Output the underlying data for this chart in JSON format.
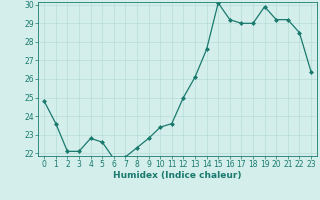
{
  "x": [
    0,
    1,
    2,
    3,
    4,
    5,
    6,
    7,
    8,
    9,
    10,
    11,
    12,
    13,
    14,
    15,
    16,
    17,
    18,
    19,
    20,
    21,
    22,
    23
  ],
  "y": [
    24.8,
    23.6,
    22.1,
    22.1,
    22.8,
    22.6,
    21.7,
    21.8,
    22.3,
    22.8,
    23.4,
    23.6,
    25.0,
    26.1,
    27.6,
    30.1,
    29.2,
    29.0,
    29.0,
    29.9,
    29.2,
    29.2,
    28.5,
    26.4
  ],
  "line_color": "#1a7a6e",
  "marker": "D",
  "marker_size": 2.0,
  "bg_color": "#d4eeeb",
  "grid_color": "#b8ddd9",
  "xlabel": "Humidex (Indice chaleur)",
  "ylim": [
    22,
    30
  ],
  "xlim": [
    -0.5,
    23.5
  ],
  "yticks": [
    22,
    23,
    24,
    25,
    26,
    27,
    28,
    29,
    30
  ],
  "xticks": [
    0,
    1,
    2,
    3,
    4,
    5,
    6,
    7,
    8,
    9,
    10,
    11,
    12,
    13,
    14,
    15,
    16,
    17,
    18,
    19,
    20,
    21,
    22,
    23
  ],
  "tick_color": "#1a7a6e",
  "label_color": "#1a7a6e",
  "xlabel_fontsize": 6.5,
  "tick_fontsize": 5.5,
  "linewidth": 0.9
}
